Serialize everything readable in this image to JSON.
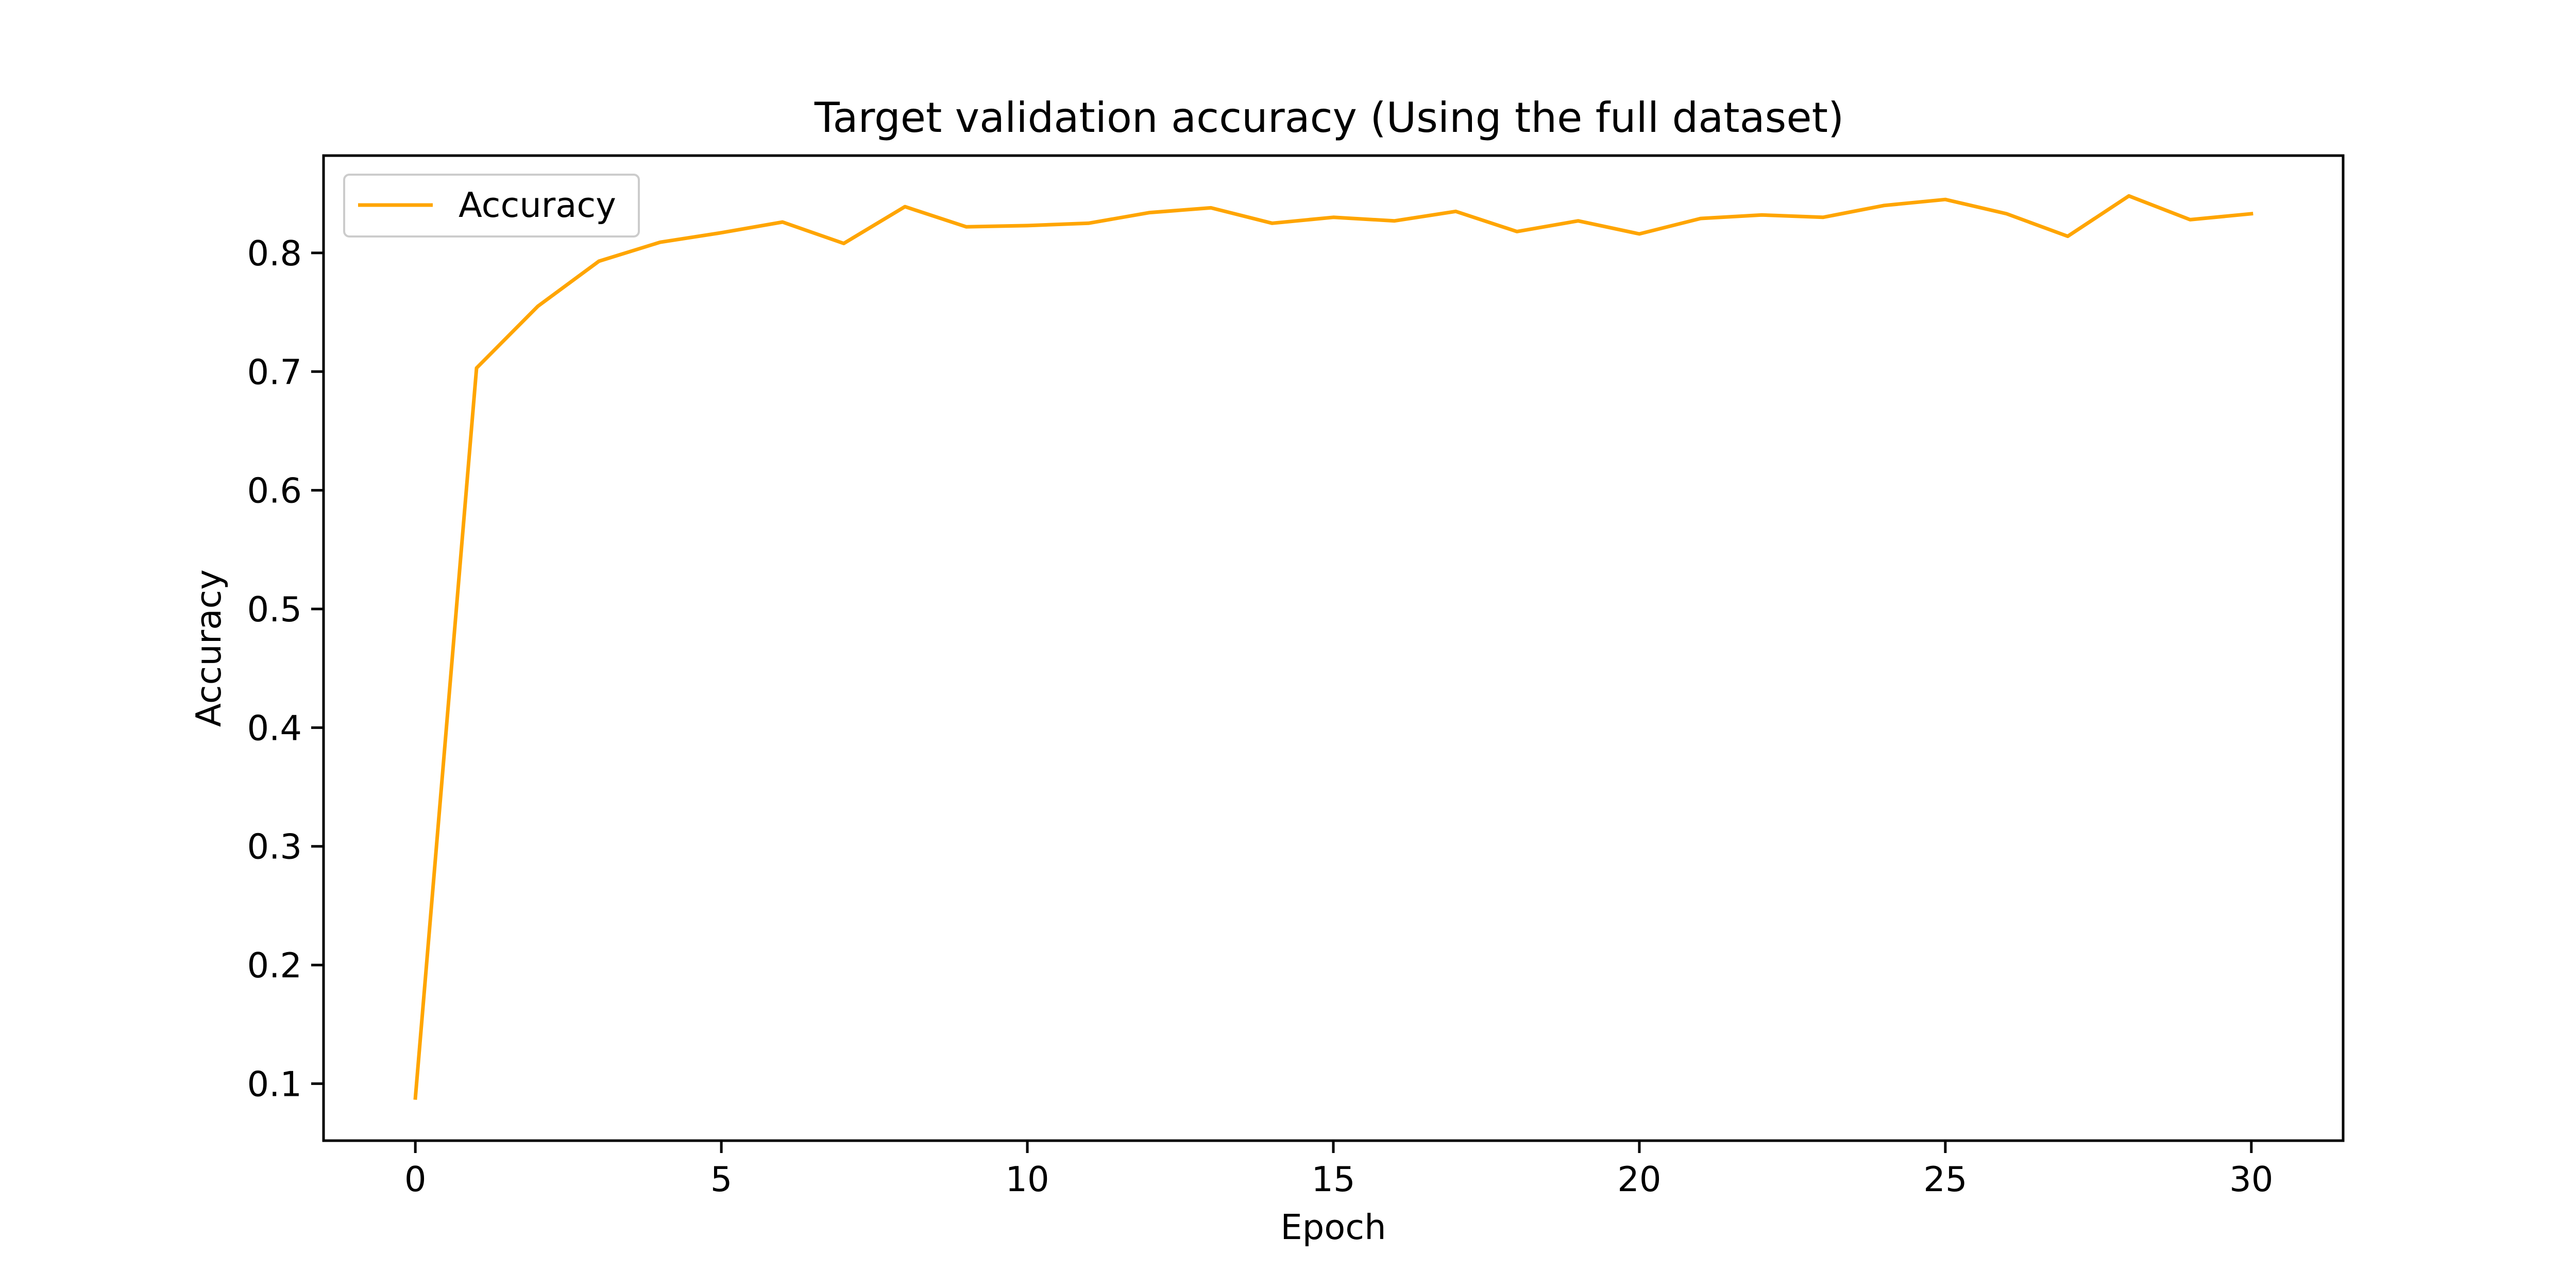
{
  "chart_data": {
    "type": "line",
    "title": "Target validation accuracy (Using the full dataset)",
    "xlabel": "Epoch",
    "ylabel": "Accuracy",
    "xlim": [
      -1.5,
      31.5
    ],
    "ylim": [
      0.052,
      0.882
    ],
    "xticks": [
      0,
      5,
      10,
      15,
      20,
      25,
      30
    ],
    "yticks": [
      0.1,
      0.2,
      0.3,
      0.4,
      0.5,
      0.6,
      0.7,
      0.8
    ],
    "ytick_labels": [
      "0.1",
      "0.2",
      "0.3",
      "0.4",
      "0.5",
      "0.6",
      "0.7",
      "0.8"
    ],
    "xtick_labels": [
      "0",
      "5",
      "10",
      "15",
      "20",
      "25",
      "30"
    ],
    "grid": false,
    "legend_position": "upper-left",
    "series": [
      {
        "name": "Accuracy",
        "color": "#ffa500",
        "x": [
          0,
          1,
          2,
          3,
          4,
          5,
          6,
          7,
          8,
          9,
          10,
          11,
          12,
          13,
          14,
          15,
          16,
          17,
          18,
          19,
          20,
          21,
          22,
          23,
          24,
          25,
          26,
          27,
          28,
          29,
          30
        ],
        "y": [
          0.088,
          0.703,
          0.755,
          0.793,
          0.809,
          0.817,
          0.826,
          0.808,
          0.839,
          0.822,
          0.823,
          0.825,
          0.834,
          0.838,
          0.825,
          0.83,
          0.827,
          0.835,
          0.818,
          0.827,
          0.816,
          0.829,
          0.832,
          0.83,
          0.84,
          0.845,
          0.833,
          0.814,
          0.848,
          0.828,
          0.833
        ]
      }
    ]
  }
}
